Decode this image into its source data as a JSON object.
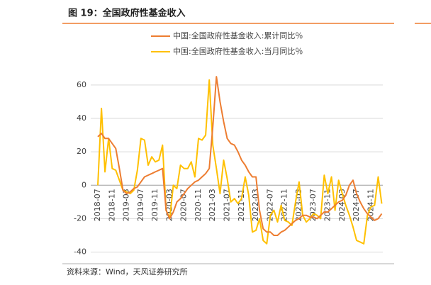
{
  "chart_data": {
    "type": "line",
    "title": "图 19：全国政府性基金收入",
    "source": "资料来源：Wind，天风证券研究所",
    "categories": [
      "2018-07",
      null,
      null,
      null,
      "2018-11",
      null,
      null,
      null,
      "2019-03",
      null,
      null,
      null,
      "2019-07",
      null,
      null,
      null,
      "2019-11",
      null,
      null,
      null,
      "2020-03",
      null,
      null,
      null,
      "2020-07",
      null,
      null,
      null,
      "2020-11",
      null,
      null,
      null,
      "2021-03",
      null,
      null,
      null,
      "2021-07",
      null,
      null,
      null,
      "2021-11",
      null,
      null,
      null,
      "2022-03",
      null,
      null,
      null,
      "2022-07",
      null,
      null,
      null,
      "2022-11",
      null,
      null,
      null,
      "2023-03",
      null,
      null,
      null,
      "2023-07",
      null,
      null,
      null,
      "2023-11",
      null,
      null,
      null,
      "2024-03",
      null,
      null,
      null,
      "2024-07",
      null,
      null,
      null,
      "2024-11",
      null,
      null,
      null
    ],
    "series": [
      {
        "name": "中国:全国政府性基金收入:累计同比％",
        "color": "#ED7D31",
        "values": [
          29,
          31,
          28,
          28,
          25,
          22,
          10,
          -3,
          -5,
          -4,
          -2,
          -1,
          2,
          5,
          6,
          7,
          8,
          9,
          10,
          -15,
          -20,
          -16,
          -10,
          -8,
          -5,
          -2,
          0,
          2,
          3,
          5,
          7,
          10,
          35,
          65,
          50,
          38,
          28,
          25,
          24,
          20,
          15,
          12,
          8,
          5,
          5,
          -15,
          -26,
          -28,
          -28,
          -30,
          -30,
          -28,
          -27,
          -25,
          -23,
          -21,
          -20,
          -18,
          -18,
          -19,
          -19,
          -20,
          -18,
          -16,
          -16,
          -14,
          -12,
          -10,
          -9,
          -6,
          0,
          3,
          -5,
          -10,
          -14,
          -17,
          -19,
          -21,
          -20,
          -17
        ]
      },
      {
        "name": "中国:全国政府性基金收入:当月同比％",
        "color": "#FFC000",
        "values": [
          0,
          46,
          8,
          28,
          10,
          9,
          3,
          -3,
          -4,
          -5,
          -3,
          9,
          28,
          27,
          12,
          17,
          14,
          15,
          24,
          -15,
          -20,
          0,
          -2,
          12,
          10,
          10,
          14,
          5,
          28,
          27,
          30,
          63,
          24,
          10,
          -5,
          15,
          4,
          -10,
          -8,
          -11,
          -8,
          5,
          -6,
          -28,
          -27,
          -20,
          -33,
          -35,
          -18,
          -15,
          -22,
          -12,
          -21,
          -22,
          -24,
          -10,
          2,
          -18,
          -22,
          -20,
          -17,
          -18,
          -20,
          6,
          -5,
          5,
          -15,
          3,
          -5,
          -12,
          -18,
          -25,
          -33,
          -34,
          -35,
          -18,
          -13,
          -12,
          5,
          -11
        ]
      }
    ],
    "ylim": [
      -44,
      68
    ],
    "yticks": [
      -40,
      -20,
      0,
      20,
      40,
      60
    ],
    "grid": true
  }
}
